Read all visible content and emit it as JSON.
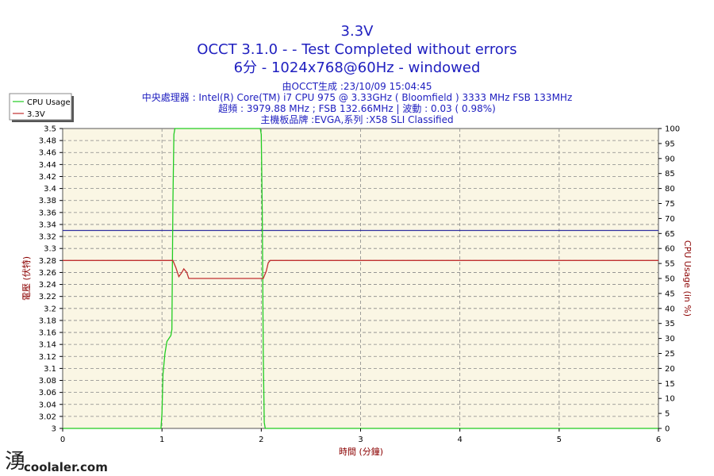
{
  "header": {
    "title": "3.3V",
    "subtitle": "OCCT 3.1.0 -  - Test Completed without errors",
    "subtitle2": "6分 - 1024x768@60Hz - windowed",
    "info_lines": [
      "由OCCT生成 :23/10/09 15:04:45",
      "中央處理器 : Intel(R) Core(TM) i7 CPU 975 @ 3.33GHz ( Bloomfield ) 3333 MHz FSB 133MHz",
      "超頻 : 3979.88 MHz ; FSB 132.66MHz | 波動 : 0.03 ( 0.98%)",
      "主機板品牌 :EVGA,系列 :X58 SLI Classified"
    ]
  },
  "watermark": "coolaler.com",
  "chart_data": {
    "type": "line",
    "xlabel": "時間 (分鐘)",
    "ylabel": "電壓 (伏特)",
    "y2label": "CPU Usage (in %)",
    "xlim": [
      0,
      6
    ],
    "ylim": [
      3.0,
      3.5
    ],
    "y2lim": [
      0,
      100
    ],
    "x_ticks": [
      "0",
      "1",
      "2",
      "3",
      "4",
      "5",
      "6"
    ],
    "y_ticks": [
      "3",
      "3.02",
      "3.04",
      "3.06",
      "3.08",
      "3.1",
      "3.12",
      "3.14",
      "3.16",
      "3.18",
      "3.2",
      "3.22",
      "3.24",
      "3.26",
      "3.28",
      "3.3",
      "3.32",
      "3.34",
      "3.36",
      "3.38",
      "3.4",
      "3.42",
      "3.44",
      "3.46",
      "3.48",
      "3.5"
    ],
    "y2_ticks": [
      "0",
      "5",
      "10",
      "15",
      "20",
      "25",
      "30",
      "35",
      "40",
      "45",
      "50",
      "55",
      "60",
      "65",
      "70",
      "75",
      "80",
      "85",
      "90",
      "95",
      "100"
    ],
    "reference_line": {
      "y": 3.33,
      "color": "#3030a0"
    },
    "grid": true,
    "legend": "top-left",
    "series": [
      {
        "name": "CPU Usage",
        "axis": "right",
        "color": "#22cc22",
        "points": [
          [
            0.0,
            0
          ],
          [
            0.99,
            0
          ],
          [
            1.0,
            5
          ],
          [
            1.01,
            18
          ],
          [
            1.03,
            25
          ],
          [
            1.05,
            29
          ],
          [
            1.07,
            30
          ],
          [
            1.09,
            31
          ],
          [
            1.1,
            33
          ],
          [
            1.11,
            75
          ],
          [
            1.12,
            98
          ],
          [
            1.13,
            100
          ],
          [
            1.14,
            100
          ],
          [
            1.99,
            100
          ],
          [
            2.0,
            98
          ],
          [
            2.01,
            72
          ],
          [
            2.02,
            25
          ],
          [
            2.03,
            2
          ],
          [
            2.04,
            0
          ],
          [
            6.0,
            0
          ]
        ]
      },
      {
        "name": "3.3V",
        "axis": "left",
        "color": "#c03030",
        "points": [
          [
            0.0,
            3.28
          ],
          [
            1.11,
            3.28
          ],
          [
            1.14,
            3.268
          ],
          [
            1.17,
            3.253
          ],
          [
            1.2,
            3.26
          ],
          [
            1.22,
            3.266
          ],
          [
            1.25,
            3.26
          ],
          [
            1.27,
            3.25
          ],
          [
            2.02,
            3.25
          ],
          [
            2.05,
            3.262
          ],
          [
            2.07,
            3.276
          ],
          [
            2.09,
            3.28
          ],
          [
            6.0,
            3.28
          ]
        ]
      }
    ]
  }
}
